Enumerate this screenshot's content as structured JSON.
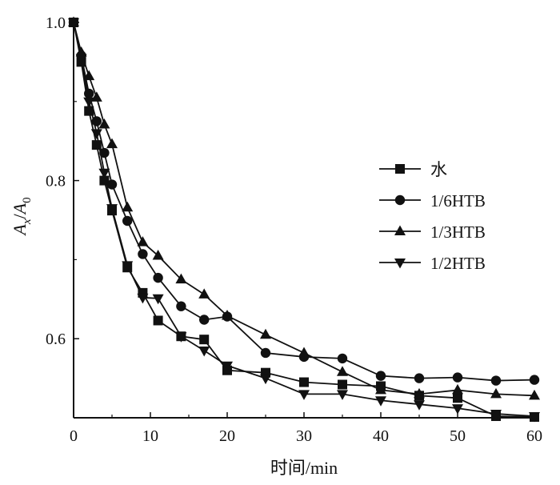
{
  "chart_data": {
    "type": "line",
    "title": "",
    "xlabel": "时间/min",
    "ylabel": "A_x/A_0",
    "ylabel_parts": {
      "main_a": "A",
      "sub_a": "x",
      "slash": "/",
      "main_b": "A",
      "sub_b": "0"
    },
    "xlim": [
      0,
      60
    ],
    "ylim": [
      0.5,
      1.0
    ],
    "xticks": [
      0,
      10,
      20,
      30,
      40,
      50,
      60
    ],
    "xtick_labels": [
      "0",
      "10",
      "20",
      "30",
      "40",
      "50",
      "60"
    ],
    "yticks": [
      0.6,
      0.8,
      1.0
    ],
    "ytick_labels": [
      "0.6",
      "0.8",
      "1.0"
    ],
    "grid": false,
    "legend_position": "right",
    "line_color": "#111111",
    "x": [
      0,
      1,
      2,
      3,
      4,
      5,
      7,
      9,
      11,
      14,
      17,
      20,
      25,
      30,
      35,
      40,
      45,
      50,
      55,
      60
    ],
    "series": [
      {
        "name": "水",
        "marker": "square",
        "values": [
          1.0,
          0.95,
          0.888,
          0.845,
          0.8,
          0.762,
          0.69,
          0.658,
          0.623,
          0.603,
          0.599,
          0.56,
          0.557,
          0.545,
          0.542,
          0.54,
          0.528,
          0.525,
          0.502,
          0.501
        ]
      },
      {
        "name": "1/6HTB",
        "marker": "circle",
        "values": [
          1.0,
          0.958,
          0.91,
          0.875,
          0.835,
          0.795,
          0.749,
          0.707,
          0.677,
          0.641,
          0.624,
          0.628,
          0.582,
          0.577,
          0.575,
          0.553,
          0.55,
          0.551,
          0.547,
          0.548
        ]
      },
      {
        "name": "1/3HTB",
        "marker": "triangle-up",
        "values": [
          1.0,
          0.962,
          0.932,
          0.905,
          0.871,
          0.846,
          0.766,
          0.722,
          0.705,
          0.675,
          0.656,
          0.629,
          0.605,
          0.582,
          0.558,
          0.535,
          0.53,
          0.535,
          0.53,
          0.528
        ]
      },
      {
        "name": "1/2HTB",
        "marker": "triangle-down",
        "values": [
          1.0,
          0.955,
          0.9,
          0.86,
          0.81,
          0.765,
          0.693,
          0.652,
          0.651,
          0.603,
          0.585,
          0.566,
          0.55,
          0.53,
          0.53,
          0.522,
          0.517,
          0.512,
          0.505,
          0.502
        ]
      }
    ]
  }
}
